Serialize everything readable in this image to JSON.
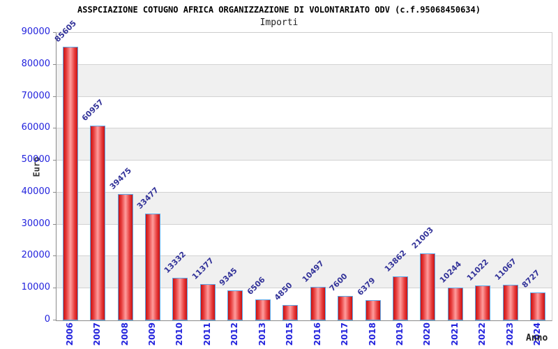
{
  "chart_data": {
    "type": "bar",
    "title": "ASSPCIAZIONE COTUGNO AFRICA ORGANIZZAZIONE DI VOLONTARIATO ODV (c.f.95068450634)",
    "subtitle": "Importi",
    "xlabel": "Anno",
    "ylabel": "Euro",
    "categories": [
      "2006",
      "2007",
      "2008",
      "2009",
      "2010",
      "2011",
      "2012",
      "2013",
      "2015",
      "2016",
      "2017",
      "2018",
      "2019",
      "2020",
      "2021",
      "2022",
      "2023",
      "2024"
    ],
    "values": [
      85605,
      60957,
      39475,
      33477,
      13332,
      11377,
      9345,
      6506,
      4850,
      10497,
      7600,
      6379,
      13862,
      21003,
      10244,
      11022,
      11067,
      8727
    ],
    "ylim": [
      0,
      90000
    ],
    "ytick_step": 10000,
    "ytick_labels": [
      "0",
      "10000",
      "20000",
      "30000",
      "40000",
      "50000",
      "60000",
      "70000",
      "80000",
      "90000"
    ],
    "grid": "horizontal gridlines with alternating background bands",
    "legend": "none",
    "colors": {
      "bar_edge": "#c81212",
      "bar_center": "#ff9d9d",
      "bar_border": "#5aa7e8",
      "value_label": "#333399",
      "axis_tick_label": "#2222dd",
      "band_gray": "#f0f0f0",
      "band_white": "#ffffff",
      "title": "#000000",
      "axis_title": "#333333"
    }
  }
}
